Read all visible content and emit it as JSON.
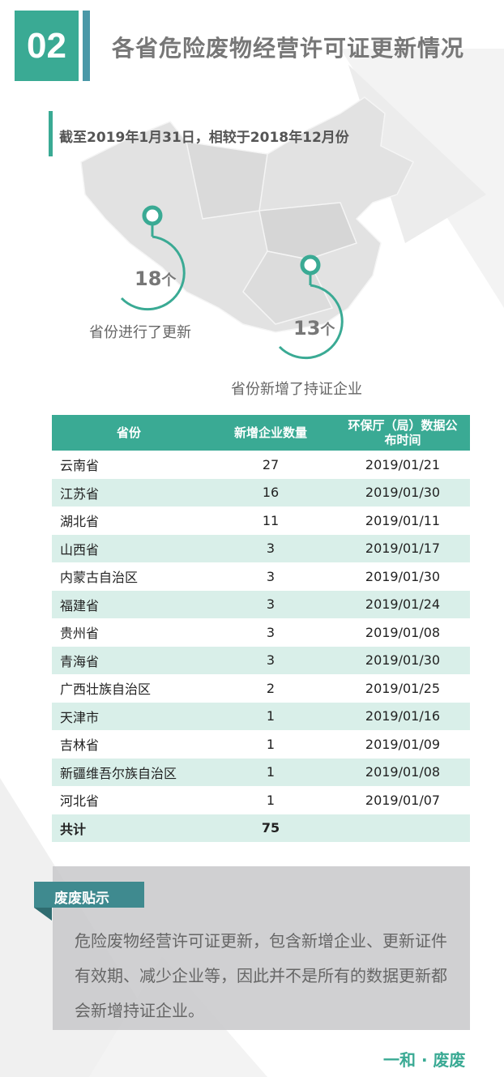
{
  "header": {
    "number": "02",
    "title": "各省危险废物经营许可证更新情况"
  },
  "subtitle": "截至2019年1月31日，相较于2018年12月份",
  "stats": [
    {
      "value": "18",
      "unit": "个",
      "label": "省份进行了更新"
    },
    {
      "value": "13",
      "unit": "个",
      "label": "省份新增了持证企业"
    }
  ],
  "table": {
    "headers": [
      "省份",
      "新增企业数量",
      "环保厅（局）数据公布时间"
    ],
    "rows": [
      [
        "云南省",
        "27",
        "2019/01/21"
      ],
      [
        "江苏省",
        "16",
        "2019/01/30"
      ],
      [
        "湖北省",
        "11",
        "2019/01/11"
      ],
      [
        "山西省",
        "3",
        "2019/01/17"
      ],
      [
        "内蒙古自治区",
        "3",
        "2019/01/30"
      ],
      [
        "福建省",
        "3",
        "2019/01/24"
      ],
      [
        "贵州省",
        "3",
        "2019/01/08"
      ],
      [
        "青海省",
        "3",
        "2019/01/30"
      ],
      [
        "广西壮族自治区",
        "2",
        "2019/01/25"
      ],
      [
        "天津市",
        "1",
        "2019/01/16"
      ],
      [
        "吉林省",
        "1",
        "2019/01/09"
      ],
      [
        "新疆维吾尔族自治区",
        "1",
        "2019/01/08"
      ],
      [
        "河北省",
        "1",
        "2019/01/07"
      ]
    ],
    "total": {
      "label": "共计",
      "value": "75"
    }
  },
  "tip": {
    "tag": "废废贴示",
    "text": "危险废物经营许可证更新，包含新增企业、更新证件有效期、减少企业等，因此并不是所有的数据更新都会新增持证企业。"
  },
  "brand": "一和 · 废废",
  "colors": {
    "accent": "#3aaa94",
    "accent2": "#4a98a8",
    "row_alt": "#d9efe9"
  }
}
